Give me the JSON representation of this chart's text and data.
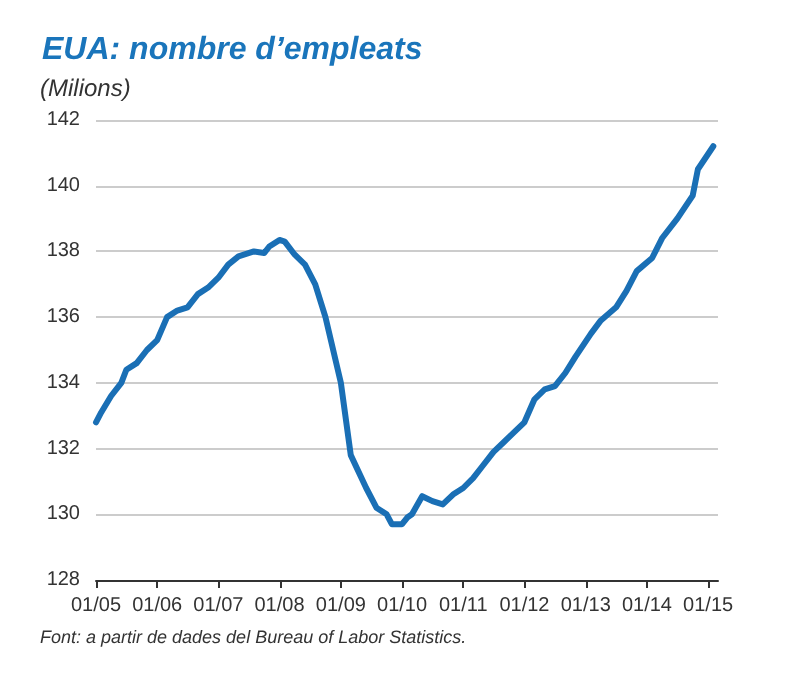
{
  "chart_data": {
    "type": "line",
    "title": "EUA: nombre d’empleats",
    "ylabel": "(Milions)",
    "annotations": [
      "Font: a partir de dades del Bureau of Labor Statistics."
    ],
    "series": [
      {
        "color": "#1a6fb5",
        "x": [
          "2005-01",
          "2005-02",
          "2005-04",
          "2005-06",
          "2005-07",
          "2005-09",
          "2005-11",
          "2006-01",
          "2006-03",
          "2006-05",
          "2006-07",
          "2006-09",
          "2006-11",
          "2007-01",
          "2007-03",
          "2007-05",
          "2007-08",
          "2007-10",
          "2007-11",
          "2008-01",
          "2008-02",
          "2008-04",
          "2008-06",
          "2008-08",
          "2008-10",
          "2009-01",
          "2009-03",
          "2009-06",
          "2009-08",
          "2009-10",
          "2009-11",
          "2010-01",
          "2010-02",
          "2010-03",
          "2010-05",
          "2010-07",
          "2010-09",
          "2010-11",
          "2011-01",
          "2011-03",
          "2011-05",
          "2011-07",
          "2011-09",
          "2011-11",
          "2012-01",
          "2012-03",
          "2012-05",
          "2012-07",
          "2012-09",
          "2012-11",
          "2013-02",
          "2013-04",
          "2013-07",
          "2013-09",
          "2013-11",
          "2014-02",
          "2014-04",
          "2014-07",
          "2014-10",
          "2014-11",
          "2015-02"
        ],
        "values": [
          132.8,
          133.1,
          133.6,
          134.0,
          134.4,
          134.6,
          135.0,
          135.3,
          136.0,
          136.2,
          136.3,
          136.7,
          136.9,
          137.2,
          137.6,
          137.85,
          138.0,
          137.95,
          138.15,
          138.35,
          138.3,
          137.9,
          137.6,
          137.0,
          136.0,
          134.0,
          131.8,
          130.8,
          130.2,
          130.0,
          129.7,
          129.7,
          129.9,
          130.0,
          130.55,
          130.4,
          130.3,
          130.6,
          130.8,
          131.1,
          131.5,
          131.9,
          132.2,
          132.5,
          132.8,
          133.5,
          133.8,
          133.9,
          134.3,
          134.8,
          135.5,
          135.9,
          136.3,
          136.8,
          137.4,
          137.8,
          138.4,
          139.0,
          139.7,
          140.5,
          141.2
        ]
      }
    ],
    "xlim": [
      "2005-01",
      "2015-03"
    ],
    "xticks": [
      {
        "value": "2005-01",
        "label": "01/05"
      },
      {
        "value": "2006-01",
        "label": "01/06"
      },
      {
        "value": "2007-01",
        "label": "01/07"
      },
      {
        "value": "2008-01",
        "label": "01/08"
      },
      {
        "value": "2009-01",
        "label": "01/09"
      },
      {
        "value": "2010-01",
        "label": "01/10"
      },
      {
        "value": "2011-01",
        "label": "01/11"
      },
      {
        "value": "2012-01",
        "label": "01/12"
      },
      {
        "value": "2013-01",
        "label": "01/13"
      },
      {
        "value": "2014-01",
        "label": "01/14"
      },
      {
        "value": "2015-01",
        "label": "01/15"
      }
    ],
    "ylim": [
      128,
      142
    ],
    "yticks": [
      128,
      130,
      132,
      134,
      136,
      138,
      140,
      142
    ],
    "grid": "y",
    "marker": "none",
    "line_style": "solid"
  }
}
